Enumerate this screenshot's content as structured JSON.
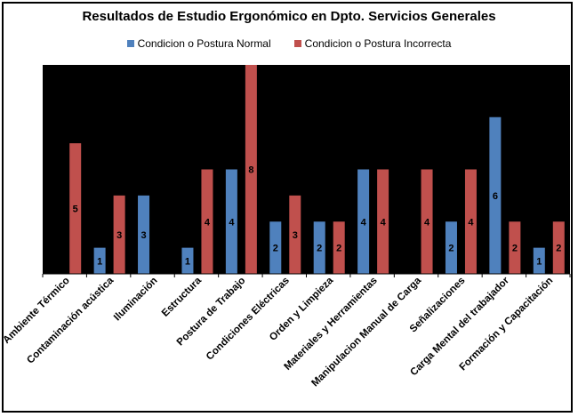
{
  "chart_data": {
    "type": "bar",
    "title": "Resultados de Estudio Ergonómico  en Dpto. Servicios Generales",
    "categories": [
      "Ambiente Térmico",
      "Contaminación acústica",
      "Iluminación",
      "Estructura",
      "Postura de Trabajo",
      "Condiciones Eléctricas",
      "Orden y Limpieza",
      "Materiales y Herramientas",
      "Manipulacion Manual de Carga",
      "Señalizaciones",
      "Carga Mental del trabajador",
      "Formación y Capacitación"
    ],
    "series": [
      {
        "name": "Condicion o Postura Normal",
        "color": "#4f81bd",
        "values": [
          0,
          1,
          3,
          1,
          4,
          2,
          2,
          4,
          0,
          2,
          6,
          1
        ]
      },
      {
        "name": "Condicion o Postura Incorrecta",
        "color": "#c0504d",
        "values": [
          5,
          3,
          0,
          4,
          8,
          3,
          2,
          4,
          4,
          4,
          2,
          2
        ]
      }
    ],
    "xlabel": "",
    "ylabel": "",
    "ylim": [
      0,
      8
    ],
    "grid": false,
    "legend_position": "top",
    "plot_background": "#000000",
    "data_labels": true
  }
}
